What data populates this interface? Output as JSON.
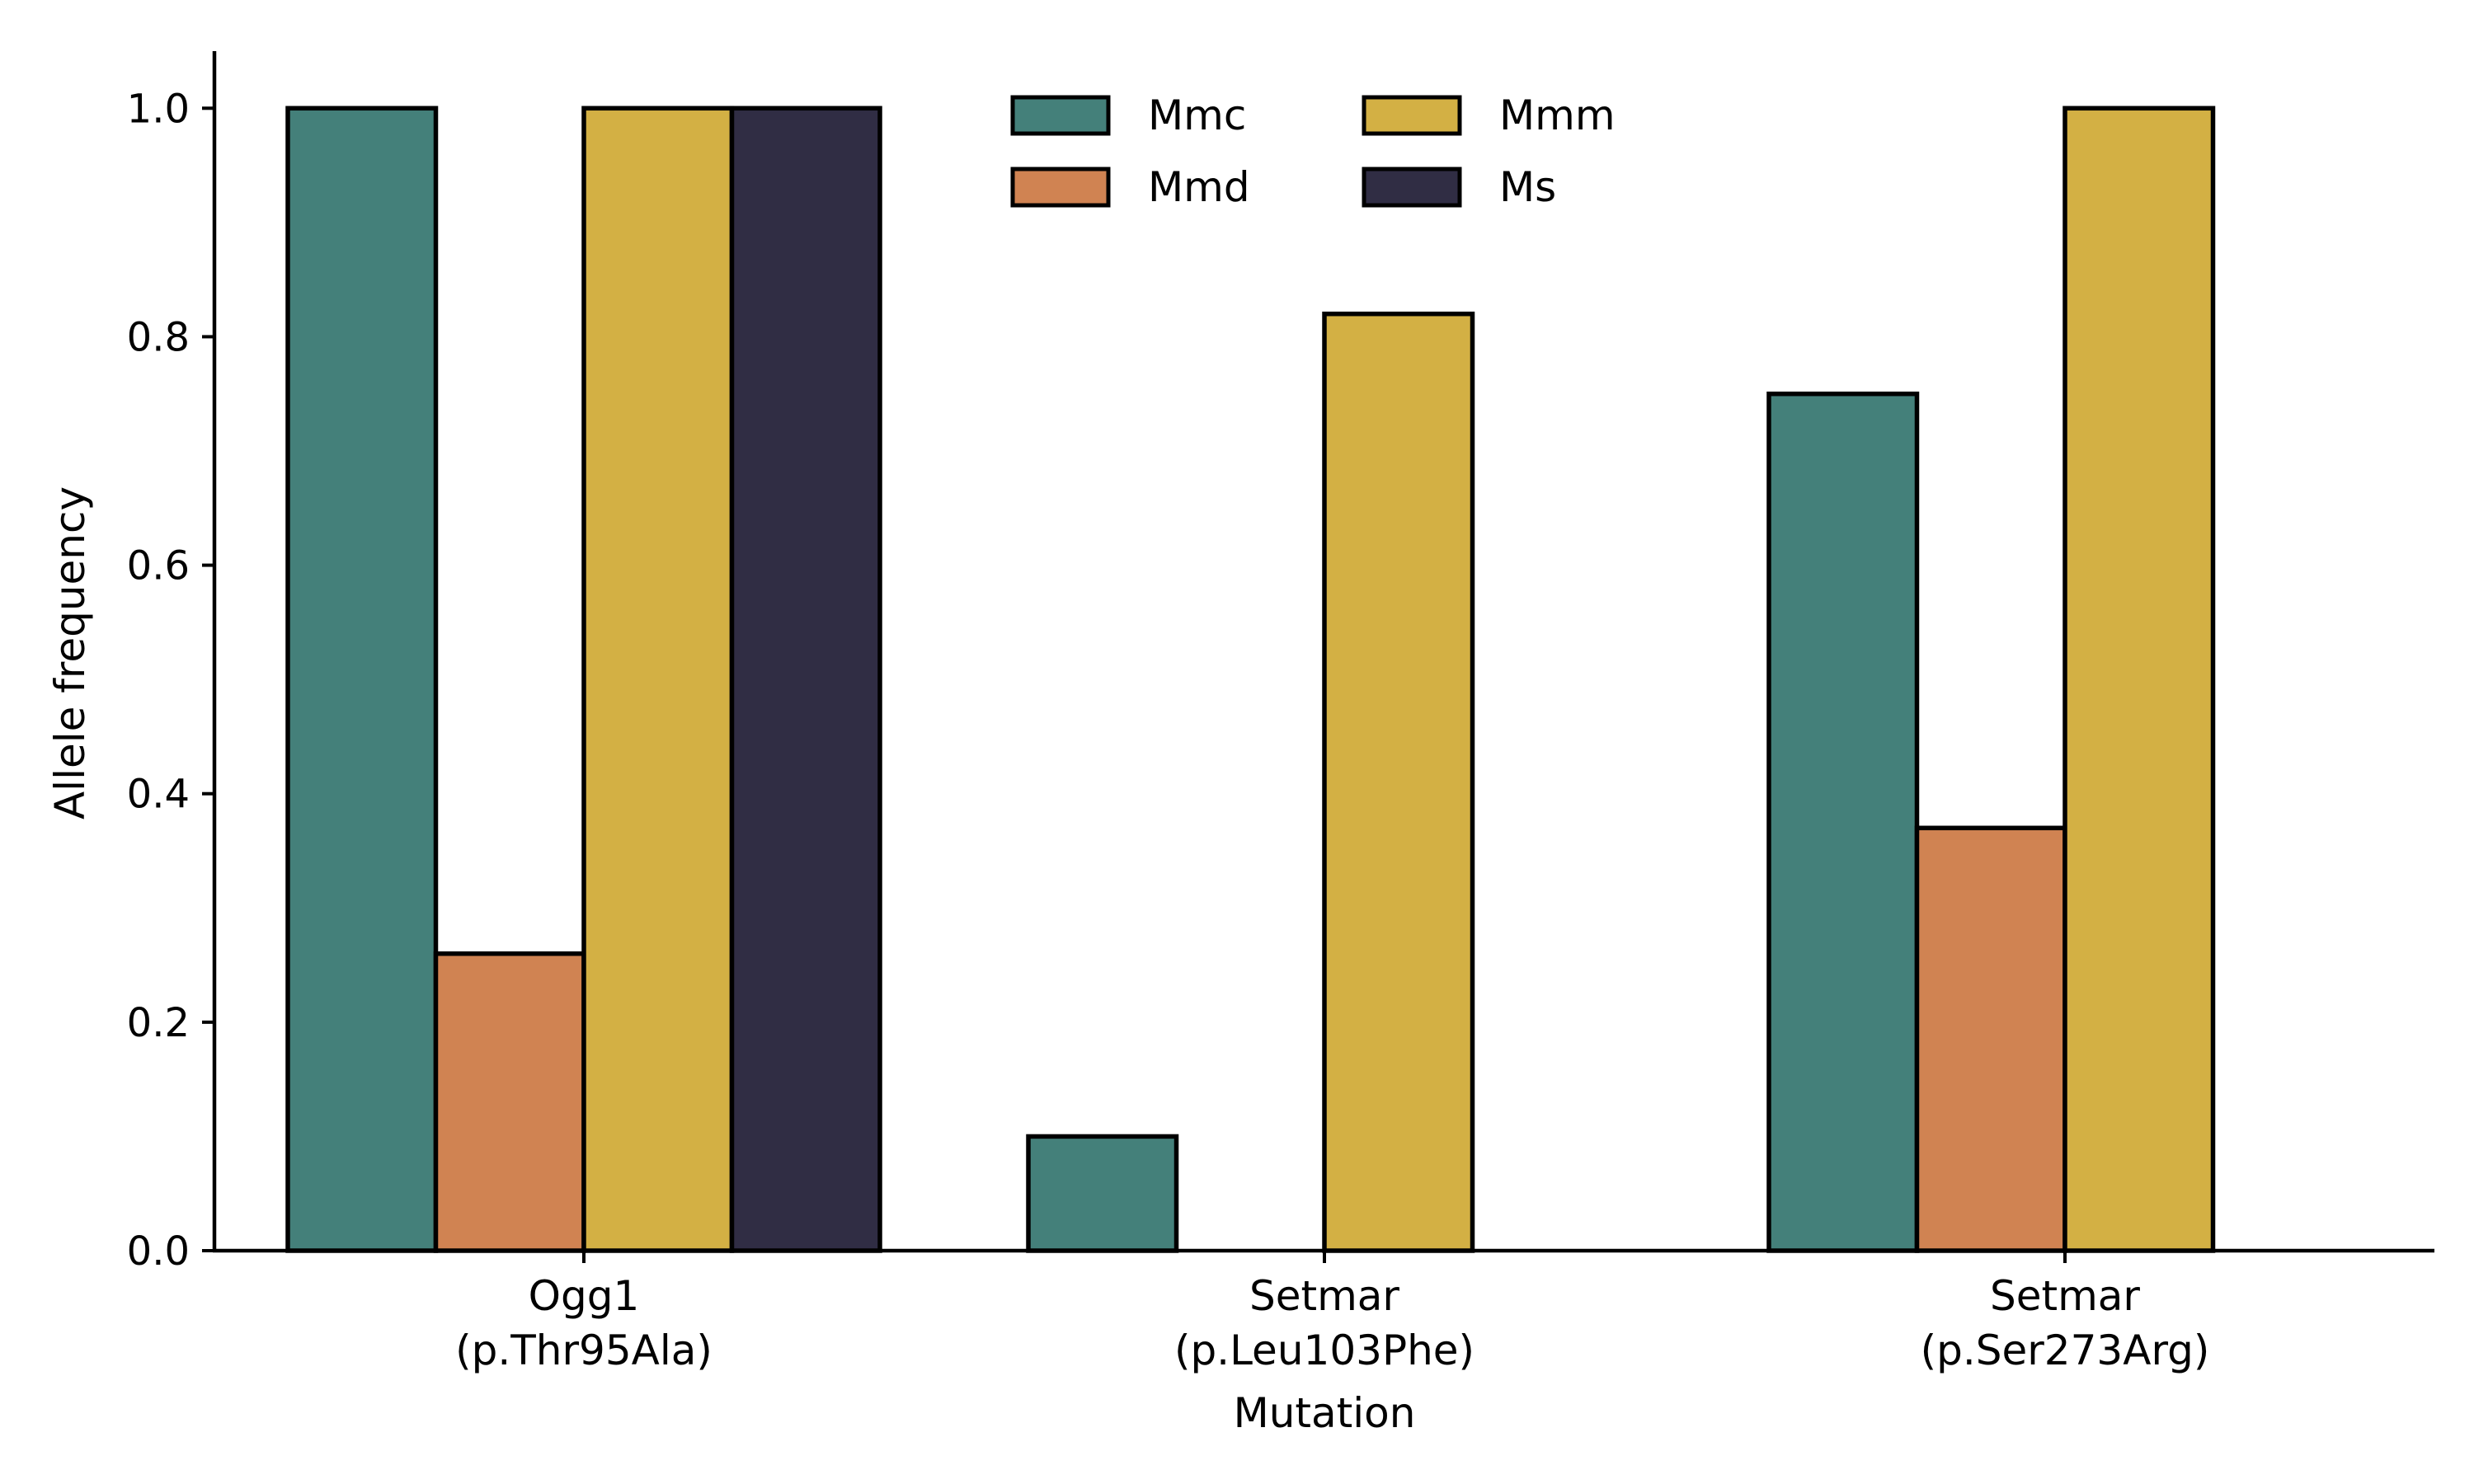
{
  "chart_data": {
    "type": "bar",
    "title": "",
    "xlabel": "Mutation",
    "ylabel": "Allele frequency",
    "categories": [
      {
        "line1": "Ogg1",
        "line2": "(p.Thr95Ala)"
      },
      {
        "line1": "Setmar",
        "line2": "(p.Leu103Phe)"
      },
      {
        "line1": "Setmar",
        "line2": "(p.Ser273Arg)"
      }
    ],
    "series": [
      {
        "name": "Mmc",
        "color": "#44807a",
        "values": [
          1.0,
          0.1,
          0.75
        ]
      },
      {
        "name": "Mmd",
        "color": "#d08352",
        "values": [
          0.26,
          0.0,
          0.37
        ]
      },
      {
        "name": "Mmm",
        "color": "#d3b044",
        "values": [
          1.0,
          0.82,
          1.0
        ]
      },
      {
        "name": "Ms",
        "color": "#302d44",
        "values": [
          1.0,
          0.0,
          0.0
        ]
      }
    ],
    "ylim": [
      0,
      1.05
    ],
    "yticks": [
      0.0,
      0.2,
      0.4,
      0.6,
      0.8,
      1.0
    ],
    "ytick_labels": [
      "0.0",
      "0.2",
      "0.4",
      "0.6",
      "0.8",
      "1.0"
    ],
    "grid": false,
    "legend_position": "top-center",
    "legend_columns": 2,
    "bar_edge_color": "#000000"
  }
}
